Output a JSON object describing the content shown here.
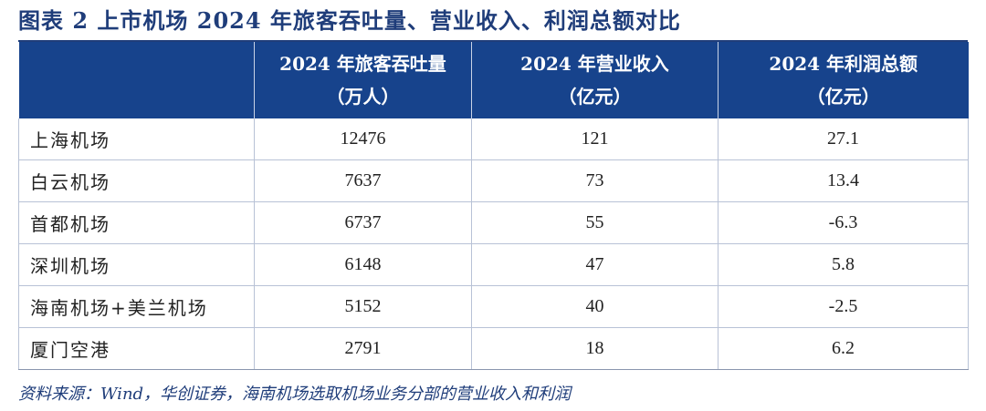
{
  "title": "图表 2   上市机场 2024 年旅客吞吐量、营业收入、利润总额对比",
  "table": {
    "headers": [
      {
        "line1": "",
        "line2": ""
      },
      {
        "line1": "2024 年旅客吞吐量",
        "line2": "（万人）"
      },
      {
        "line1": "2024 年营业收入",
        "line2": "（亿元）"
      },
      {
        "line1": "2024 年利润总额",
        "line2": "（亿元）"
      }
    ],
    "rows": [
      {
        "name": "上海机场",
        "passengers": "12476",
        "revenue": "121",
        "profit": "27.1"
      },
      {
        "name": "白云机场",
        "passengers": "7637",
        "revenue": "73",
        "profit": "13.4"
      },
      {
        "name": "首都机场",
        "passengers": "6737",
        "revenue": "55",
        "profit": "-6.3"
      },
      {
        "name": "深圳机场",
        "passengers": "6148",
        "revenue": "47",
        "profit": "5.8"
      },
      {
        "name": "海南机场+美兰机场",
        "passengers": "5152",
        "revenue": "40",
        "profit": "-2.5"
      },
      {
        "name": "厦门空港",
        "passengers": "2791",
        "revenue": "18",
        "profit": "6.2"
      }
    ]
  },
  "source": "资料来源：Wind，华创证券，海南机场选取机场业务分部的营业收入和利润",
  "colors": {
    "header_bg": "#17438c",
    "title": "#1f3d7a"
  }
}
